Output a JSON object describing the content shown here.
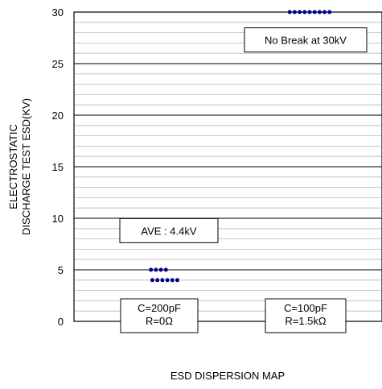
{
  "chart_data": {
    "type": "scatter",
    "title": "",
    "xlabel": "ESD DISPERSION MAP",
    "ylabel_lines": [
      "ELECTROSTATIC",
      "DISCHARGE TEST ESD(KV)"
    ],
    "ylim": [
      0,
      30
    ],
    "yticks": [
      "0",
      "5",
      "10",
      "15",
      "20",
      "25",
      "30"
    ],
    "grid": true,
    "categories": [
      {
        "lines": [
          "C=200pF",
          "R=0Ω"
        ]
      },
      {
        "lines": [
          "C=100pF",
          "R=1.5kΩ"
        ]
      }
    ],
    "series": [
      {
        "color": "#00008b",
        "points": [
          {
            "category": 0,
            "y": 5,
            "count": 4
          },
          {
            "category": 0,
            "y": 4,
            "count": 6
          },
          {
            "category": 1,
            "y": 30,
            "count": 9
          }
        ]
      }
    ],
    "annotations": [
      {
        "text": "AVE : 4.4kV",
        "category": 0,
        "y": 8.8
      },
      {
        "text": "No Break at 30kV",
        "category": 1,
        "y": 27.3
      }
    ]
  }
}
